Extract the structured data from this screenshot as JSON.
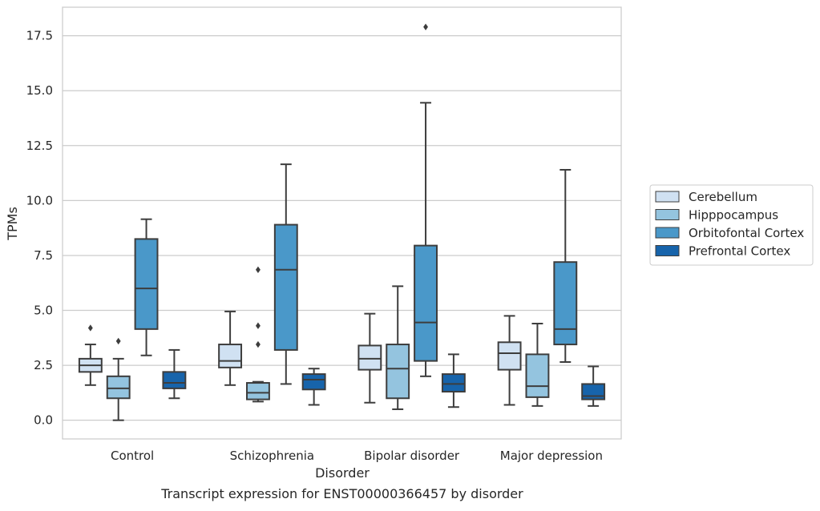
{
  "chart_data": {
    "type": "boxplot",
    "xlabel": "Disorder",
    "ylabel": "TPMs",
    "caption": "Transcript expression for ENST00000366457 by disorder",
    "ylim": [
      -0.85,
      18.8
    ],
    "yticks": [
      0.0,
      2.5,
      5.0,
      7.5,
      10.0,
      12.5,
      15.0,
      17.5
    ],
    "ytick_labels": [
      "0.0",
      "2.5",
      "5.0",
      "7.5",
      "10.0",
      "12.5",
      "15.0",
      "17.5"
    ],
    "grid": "horizontal",
    "legend_position": "right",
    "categories": [
      "Control",
      "Schizophrenia",
      "Bipolar disorder",
      "Major depression"
    ],
    "series": [
      {
        "name": "Cerebellum",
        "color": "#d0e1f2",
        "boxes": [
          {
            "whislo": 1.6,
            "q1": 2.2,
            "med": 2.5,
            "q3": 2.8,
            "whishi": 3.45,
            "fliers": [
              4.2
            ]
          },
          {
            "whislo": 1.6,
            "q1": 2.4,
            "med": 2.7,
            "q3": 3.45,
            "whishi": 4.95,
            "fliers": []
          },
          {
            "whislo": 0.8,
            "q1": 2.3,
            "med": 2.8,
            "q3": 3.4,
            "whishi": 4.85,
            "fliers": []
          },
          {
            "whislo": 0.7,
            "q1": 2.3,
            "med": 3.05,
            "q3": 3.55,
            "whishi": 4.75,
            "fliers": []
          }
        ]
      },
      {
        "name": "Hipppocampus",
        "color": "#94c4df",
        "boxes": [
          {
            "whislo": 0.0,
            "q1": 1.0,
            "med": 1.45,
            "q3": 2.0,
            "whishi": 2.8,
            "fliers": [
              3.6
            ]
          },
          {
            "whislo": 0.85,
            "q1": 0.95,
            "med": 1.25,
            "q3": 1.7,
            "whishi": 1.75,
            "fliers": [
              3.45,
              4.3,
              6.85
            ]
          },
          {
            "whislo": 0.5,
            "q1": 1.0,
            "med": 2.35,
            "q3": 3.45,
            "whishi": 6.1,
            "fliers": []
          },
          {
            "whislo": 0.65,
            "q1": 1.05,
            "med": 1.55,
            "q3": 3.0,
            "whishi": 4.4,
            "fliers": []
          }
        ]
      },
      {
        "name": "Orbitofontal Cortex",
        "color": "#4a98c9",
        "boxes": [
          {
            "whislo": 2.95,
            "q1": 4.15,
            "med": 6.0,
            "q3": 8.25,
            "whishi": 9.15,
            "fliers": []
          },
          {
            "whislo": 1.65,
            "q1": 3.2,
            "med": 6.85,
            "q3": 8.9,
            "whishi": 11.65,
            "fliers": []
          },
          {
            "whislo": 2.0,
            "q1": 2.7,
            "med": 4.45,
            "q3": 7.95,
            "whishi": 14.45,
            "fliers": [
              17.9
            ]
          },
          {
            "whislo": 2.65,
            "q1": 3.45,
            "med": 4.15,
            "q3": 7.2,
            "whishi": 11.4,
            "fliers": []
          }
        ]
      },
      {
        "name": "Prefrontal Cortex",
        "color": "#1764ab",
        "boxes": [
          {
            "whislo": 1.0,
            "q1": 1.45,
            "med": 1.7,
            "q3": 2.2,
            "whishi": 3.2,
            "fliers": []
          },
          {
            "whislo": 0.7,
            "q1": 1.4,
            "med": 1.85,
            "q3": 2.1,
            "whishi": 2.35,
            "fliers": []
          },
          {
            "whislo": 0.6,
            "q1": 1.3,
            "med": 1.65,
            "q3": 2.1,
            "whishi": 3.0,
            "fliers": []
          },
          {
            "whislo": 0.65,
            "q1": 0.95,
            "med": 1.1,
            "q3": 1.65,
            "whishi": 2.45,
            "fliers": []
          }
        ]
      }
    ]
  }
}
